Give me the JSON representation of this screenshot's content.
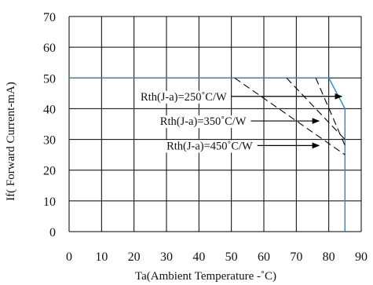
{
  "chart_data": {
    "type": "line",
    "xlabel": "Ta(Ambient Temperature -˚C)",
    "ylabel": "If( Forward Current-mA)",
    "xlim": [
      0,
      90
    ],
    "ylim": [
      0,
      70
    ],
    "xticks": [
      0,
      10,
      20,
      30,
      40,
      50,
      60,
      70,
      80,
      90
    ],
    "yticks": [
      0,
      10,
      20,
      30,
      40,
      50,
      60,
      70
    ],
    "grid": true,
    "colors": {
      "derating": "#1a8fd8",
      "thermal_lines": "#000000",
      "grid": "#000000"
    },
    "series": [
      {
        "style": "solid",
        "x": [
          0,
          80,
          85,
          85
        ],
        "y": [
          50,
          50,
          40,
          0
        ]
      },
      {
        "style": "dashed",
        "x": [
          51,
          85
        ],
        "y": [
          50,
          25
        ]
      },
      {
        "style": "dashed",
        "x": [
          67,
          85
        ],
        "y": [
          50,
          30
        ]
      },
      {
        "style": "dashed",
        "x": [
          76,
          85
        ],
        "y": [
          50,
          28
        ]
      }
    ],
    "annotations": [
      {
        "text": "Rth(J-a)=250˚C/W",
        "arrow_from": [
          50,
          44
        ],
        "arrow_to": [
          84,
          44
        ]
      },
      {
        "text": "Rth(J-a)=350˚C/W",
        "arrow_from": [
          56,
          36
        ],
        "arrow_to": [
          77,
          36
        ]
      },
      {
        "text": "Rth(J-a)=450˚C/W",
        "arrow_from": [
          58,
          28
        ],
        "arrow_to": [
          77,
          28
        ]
      }
    ]
  }
}
